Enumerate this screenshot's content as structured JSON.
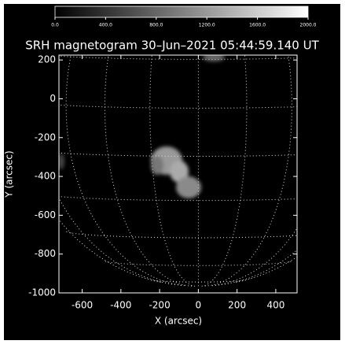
{
  "chart_data": {
    "type": "image",
    "title": "SRH magnetogram 30–Jun–2021 05:44:59.140 UT",
    "x_label": "X (arcsec)",
    "y_label": "Y (arcsec)",
    "xlim": [
      -720,
      510
    ],
    "ylim": [
      -1000,
      225
    ],
    "xticks": [
      -600,
      -400,
      -200,
      0,
      200,
      400
    ],
    "yticks": [
      200,
      0,
      -200,
      -400,
      -600,
      -800,
      -1000
    ],
    "colorbar": {
      "lim": [
        0,
        2000
      ],
      "ticks": [
        {
          "value": 0,
          "label": "0.0"
        },
        {
          "value": 400,
          "label": "400.0"
        },
        {
          "value": 800,
          "label": "800.0"
        },
        {
          "value": 1200,
          "label": "1200.0"
        },
        {
          "value": 1600,
          "label": "1600.0"
        },
        {
          "value": 2000,
          "label": "2000.0"
        }
      ]
    }
  }
}
